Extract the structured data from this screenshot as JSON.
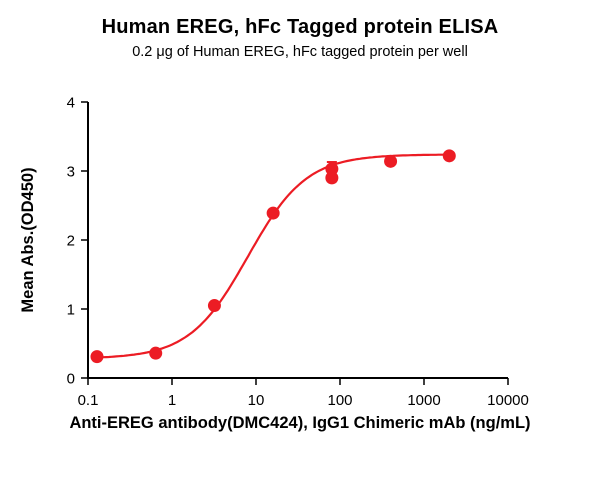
{
  "chart_data": {
    "type": "scatter",
    "title": "Human EREG, hFc Tagged protein ELISA",
    "subtitle": "0.2 μg of Human EREG, hFc tagged protein per well",
    "xlabel": "Anti-EREG antibody(DMC424), IgG1 Chimeric mAb  (ng/mL)",
    "ylabel": "Mean Abs.(OD450)",
    "x_scale": "log10",
    "xlim": [
      0.1,
      10000
    ],
    "ylim": [
      0,
      4
    ],
    "x_ticks": [
      0.1,
      1,
      10,
      100,
      1000,
      10000
    ],
    "x_tick_labels": [
      "0.1",
      "1",
      "10",
      "100",
      "1000",
      "10000"
    ],
    "y_ticks": [
      0,
      1,
      2,
      3,
      4
    ],
    "y_tick_labels": [
      "0",
      "1",
      "2",
      "3",
      "4"
    ],
    "points": [
      {
        "x": 0.128,
        "y": 0.31,
        "err": 0
      },
      {
        "x": 0.64,
        "y": 0.36,
        "err": 0
      },
      {
        "x": 3.2,
        "y": 1.05,
        "err": 0
      },
      {
        "x": 16,
        "y": 2.39,
        "err": 0
      },
      {
        "x": 80,
        "y": 2.9,
        "err": 0.05
      },
      {
        "x": 80,
        "y": 3.03,
        "err": 0.1
      },
      {
        "x": 400,
        "y": 3.14,
        "err": 0
      },
      {
        "x": 2000,
        "y": 3.22,
        "err": 0
      }
    ],
    "fit_curve": {
      "model": "4PL",
      "bottom": 0.28,
      "top": 3.24,
      "ec50": 8.0,
      "hill": 1.25,
      "x_start": 0.125,
      "x_end": 2100
    },
    "marker_color": "#EC1C24",
    "line_color": "#EC1C24",
    "axis_color": "#000000",
    "grid": false,
    "legend": false
  }
}
